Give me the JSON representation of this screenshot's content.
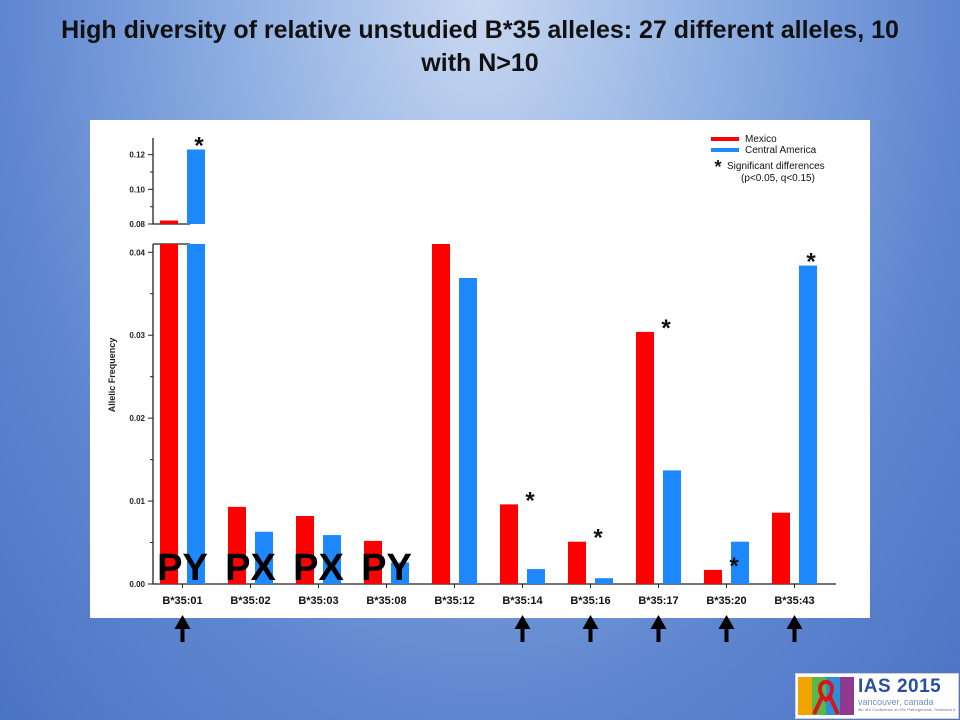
{
  "slide": {
    "title": "High diversity of relative unstudied B*35 alleles: 27 different alleles, 10 with N>10"
  },
  "chart_data": {
    "type": "bar",
    "title": "",
    "xlabel": "",
    "ylabel": "Allelic Frequency",
    "categories": [
      "B*35:01",
      "B*35:02",
      "B*35:03",
      "B*35:08",
      "B*35:12",
      "B*35:14",
      "B*35:16",
      "B*35:17",
      "B*35:20",
      "B*35:43"
    ],
    "series": [
      {
        "name": "Mexico",
        "color": "#ff0000",
        "values": [
          0.082,
          0.0093,
          0.0082,
          0.0052,
          0.041,
          0.0096,
          0.0051,
          0.0304,
          0.0017,
          0.0086
        ]
      },
      {
        "name": "Central America",
        "color": "#1e88ff",
        "values": [
          0.123,
          0.0063,
          0.0059,
          0.0026,
          0.0369,
          0.0018,
          0.0007,
          0.0137,
          0.0051,
          0.0384
        ]
      }
    ],
    "axis_break": {
      "lower_range": [
        0,
        0.041
      ],
      "upper_range": [
        0.08,
        0.125
      ]
    },
    "lower_ticks": [
      "0.00",
      "0.01",
      "0.02",
      "0.03",
      "0.04"
    ],
    "upper_ticks": [
      "0.08",
      "0.10",
      "0.12"
    ],
    "significant_markers": [
      {
        "category": "B*35:01",
        "series": "Central America"
      },
      {
        "category": "B*35:14",
        "series": "Mexico"
      },
      {
        "category": "B*35:16",
        "series": "Mexico"
      },
      {
        "category": "B*35:17",
        "series": "Mexico"
      },
      {
        "category": "B*35:20",
        "series": "Mexico"
      },
      {
        "category": "B*35:43",
        "series": "Central America"
      }
    ],
    "significance_symbol": "*",
    "legend_note": "Significant differences",
    "legend_note_detail": "(p<0.05, q<0.15)",
    "legend_position": "top-right",
    "overlay_labels": [
      {
        "category": "B*35:01",
        "text": "PY"
      },
      {
        "category": "B*35:02",
        "text": "PX"
      },
      {
        "category": "B*35:03",
        "text": "PX"
      },
      {
        "category": "B*35:08",
        "text": "PY"
      }
    ],
    "arrow_categories": [
      "B*35:01",
      "B*35:14",
      "B*35:16",
      "B*35:17",
      "B*35:20",
      "B*35:43"
    ]
  },
  "logo": {
    "main": "IAS 2015",
    "sub": "vancouver, canada",
    "fine": "8th IAS Conference on HIV Pathogenesis, Treatment & Prevention 19-22 July 2015"
  }
}
